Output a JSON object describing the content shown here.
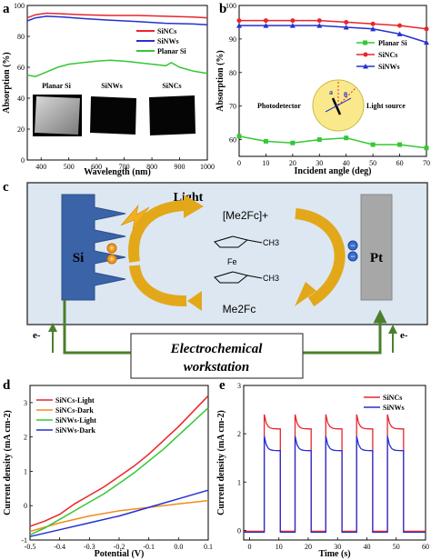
{
  "panels": {
    "a": {
      "label": "a"
    },
    "b": {
      "label": "b"
    },
    "c": {
      "label": "c"
    },
    "d": {
      "label": "d"
    },
    "e": {
      "label": "e"
    }
  },
  "colors": {
    "red": "#e8262b",
    "blue": "#2531cf",
    "green": "#35c835",
    "orange": "#f28c1e",
    "diagram_bg": "#dde7f1",
    "si": "#3a63a8",
    "pt": "#a7a7a7",
    "arrow": "#e2a81a",
    "wire": "#4c7f2c"
  },
  "chart_data": [
    {
      "panel": "a",
      "type": "line",
      "xlabel": "Wavelength (nm)",
      "ylabel": "Absorption (%)",
      "xlim": [
        350,
        1000
      ],
      "ylim": [
        0,
        100
      ],
      "xticks": [
        400,
        500,
        600,
        700,
        800,
        900,
        1000
      ],
      "yticks": [
        0,
        20,
        40,
        60,
        80,
        100
      ],
      "legend_position": "top-right",
      "series": [
        {
          "name": "SiNCs",
          "color": "#e8262b",
          "x": [
            350,
            380,
            420,
            480,
            550,
            650,
            750,
            850,
            950,
            1000
          ],
          "y": [
            92,
            94,
            95,
            94.5,
            94,
            93.5,
            93.5,
            93,
            92.5,
            92
          ]
        },
        {
          "name": "SiNWs",
          "color": "#2531cf",
          "x": [
            350,
            380,
            420,
            480,
            550,
            650,
            750,
            850,
            950,
            1000
          ],
          "y": [
            90,
            92,
            93,
            92.5,
            91.5,
            90.5,
            89.5,
            88.5,
            88,
            87.5
          ]
        },
        {
          "name": "Planar Si",
          "color": "#35c835",
          "x": [
            350,
            380,
            420,
            460,
            500,
            550,
            600,
            650,
            700,
            750,
            800,
            850,
            870,
            900,
            950,
            1000
          ],
          "y": [
            55,
            54,
            57,
            60,
            62,
            63,
            64,
            64.5,
            64,
            63,
            62,
            61,
            63,
            60,
            57.5,
            56
          ]
        }
      ],
      "inset_labels": [
        "Planar Si",
        "SiNWs",
        "SiNCs"
      ]
    },
    {
      "panel": "b",
      "type": "line",
      "xlabel": "Incident angle (deg)",
      "ylabel": "Absorption (%)",
      "xlim": [
        0,
        70
      ],
      "ylim": [
        55,
        100
      ],
      "xticks": [
        0,
        10,
        20,
        30,
        40,
        50,
        60,
        70
      ],
      "yticks": [
        60,
        70,
        80,
        90,
        100
      ],
      "legend_position": "center-right",
      "series": [
        {
          "name": "Planar Si",
          "color": "#35c835",
          "x": [
            0,
            10,
            20,
            30,
            40,
            50,
            60,
            70
          ],
          "y": [
            61,
            59.5,
            59,
            60,
            60.5,
            58.5,
            58.5,
            57.5
          ]
        },
        {
          "name": "SiNCs",
          "color": "#e8262b",
          "x": [
            0,
            10,
            20,
            30,
            40,
            50,
            60,
            70
          ],
          "y": [
            95.5,
            95.5,
            95.5,
            95.5,
            95,
            94.5,
            94,
            93
          ]
        },
        {
          "name": "SiNWs",
          "color": "#2531cf",
          "x": [
            0,
            10,
            20,
            30,
            40,
            50,
            60,
            70
          ],
          "y": [
            94,
            94,
            94,
            94,
            93.5,
            93,
            91.5,
            89
          ]
        }
      ],
      "inset_labels": [
        "Photodetector",
        "Light source",
        "a",
        "θ"
      ]
    },
    {
      "panel": "d",
      "type": "line",
      "xlabel": "Potential (V)",
      "ylabel": "Current density (mA cm-2)",
      "xlim": [
        -0.5,
        0.1
      ],
      "ylim": [
        -1.0,
        3.5
      ],
      "xticks": [
        -0.5,
        -0.4,
        -0.3,
        -0.2,
        -0.1,
        0.0,
        0.1
      ],
      "ytick_labels": [
        "-1",
        "0",
        "1",
        "2",
        "3"
      ],
      "xtick_labels": [
        "-0.5",
        "-0.4",
        "-0.3",
        "-0.2",
        "-0.1",
        "0.0",
        "0.1"
      ],
      "legend_position": "top-left",
      "series": [
        {
          "name": "SiNCs-Light",
          "color": "#e8262b",
          "x": [
            -0.5,
            -0.45,
            -0.4,
            -0.35,
            -0.3,
            -0.25,
            -0.2,
            -0.15,
            -0.1,
            -0.05,
            0.0,
            0.05,
            0.1
          ],
          "y": [
            -0.6,
            -0.45,
            -0.25,
            0.05,
            0.3,
            0.55,
            0.85,
            1.15,
            1.5,
            1.9,
            2.3,
            2.75,
            3.2
          ]
        },
        {
          "name": "SiNCs-Dark",
          "color": "#f28c1e",
          "x": [
            -0.5,
            -0.4,
            -0.3,
            -0.2,
            -0.1,
            0.0,
            0.1
          ],
          "y": [
            -0.75,
            -0.5,
            -0.3,
            -0.15,
            -0.05,
            0.05,
            0.15
          ]
        },
        {
          "name": "SiNWs-Light",
          "color": "#35c835",
          "x": [
            -0.5,
            -0.45,
            -0.4,
            -0.35,
            -0.3,
            -0.25,
            -0.2,
            -0.15,
            -0.1,
            -0.05,
            0.0,
            0.05,
            0.1
          ],
          "y": [
            -0.85,
            -0.65,
            -0.4,
            -0.15,
            0.1,
            0.35,
            0.65,
            0.95,
            1.3,
            1.65,
            2.05,
            2.45,
            2.85
          ]
        },
        {
          "name": "SiNWs-Dark",
          "color": "#2531cf",
          "x": [
            -0.5,
            -0.4,
            -0.3,
            -0.2,
            -0.1,
            0.0,
            0.1
          ],
          "y": [
            -0.9,
            -0.7,
            -0.5,
            -0.3,
            -0.05,
            0.2,
            0.45
          ]
        }
      ]
    },
    {
      "panel": "e",
      "type": "line",
      "xlabel": "Time (s)",
      "ylabel": "Current density (mA cm-2)",
      "xlim": [
        -2,
        60
      ],
      "ylim": [
        -0.2,
        3.0
      ],
      "xticks": [
        0,
        10,
        20,
        30,
        40,
        50,
        60
      ],
      "yticks": [
        0,
        1,
        2,
        3
      ],
      "legend_position": "top-right",
      "pulses": {
        "on_times": [
          5,
          15.5,
          26,
          36.5,
          47
        ],
        "duration": 5.5
      },
      "series": [
        {
          "name": "SiNCs",
          "color": "#e8262b",
          "peak": 2.4,
          "plateau": 2.1,
          "baseline": -0.02
        },
        {
          "name": "SiNWs",
          "color": "#2531cf",
          "peak": 1.95,
          "plateau": 1.65,
          "baseline": -0.04
        }
      ]
    }
  ],
  "diagram": {
    "light_label": "Light",
    "oxidized_label": "[Me2Fc]+",
    "reduced_label": "Me2Fc",
    "fe_label": "Fe",
    "ch3_label": "CH3",
    "si_label": "Si",
    "pt_label": "Pt",
    "electron_label": "e-",
    "workstation_line1": "Electrochemical",
    "workstation_line2": "workstation"
  }
}
